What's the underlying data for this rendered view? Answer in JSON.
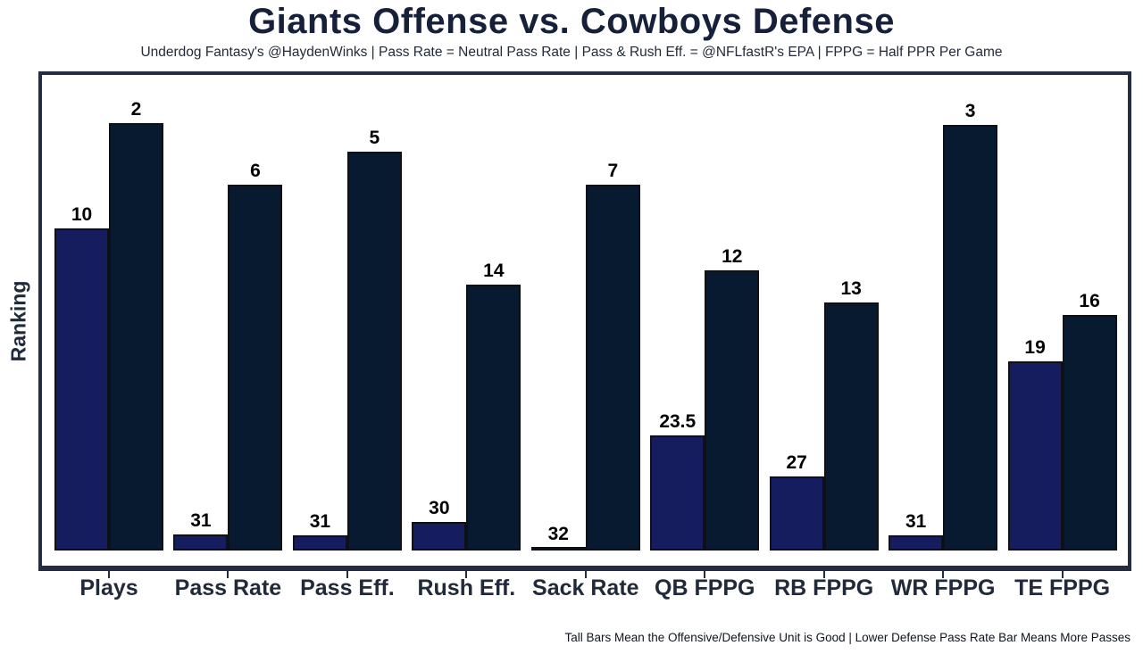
{
  "title": "Giants Offense vs. Cowboys Defense",
  "subtitle": "Underdog Fantasy's @HaydenWinks | Pass Rate = Neutral Pass Rate | Pass & Rush Eff. = @NFLfastR's EPA | FPPG = Half PPR Per Game",
  "footnote": "Tall Bars Mean the Offensive/Defensive Unit is Good | Lower Defense Pass Rate Bar Means More Passes",
  "colors": {
    "offense_bar": "#151d5e",
    "defense_bar": "#081a30",
    "bar_edge": "#0d1117",
    "axis": "#242e40",
    "title_text": "#17203a",
    "axis_label_text": "#202a3a",
    "value_label_text": "#000000"
  },
  "chart_data": {
    "type": "bar",
    "title": "Giants Offense vs. Cowboys Defense",
    "xlabel": "",
    "ylabel": "Ranking",
    "grid": false,
    "legend": "none",
    "categories": [
      "Plays",
      "Pass Rate",
      "Pass Eff.",
      "Rush Eff.",
      "Sack Rate",
      "QB FPPG",
      "RB FPPG",
      "WR FPPG",
      "TE FPPG"
    ],
    "series": [
      {
        "name": "Giants Offense",
        "role": "offense",
        "values": [
          10,
          31,
          31,
          30,
          32,
          23.5,
          27,
          31,
          19
        ],
        "height_frac": [
          0.677,
          0.034,
          0.032,
          0.06,
          0.005,
          0.242,
          0.156,
          0.032,
          0.398
        ]
      },
      {
        "name": "Cowboys Defense",
        "role": "defense",
        "values": [
          2,
          6,
          5,
          14,
          7,
          12,
          13,
          3,
          16
        ],
        "height_frac": [
          0.899,
          0.769,
          0.839,
          0.559,
          0.769,
          0.589,
          0.522,
          0.895,
          0.495
        ]
      }
    ],
    "value_labels": "rank shown above each bar",
    "note": "Bar height reflects unit quality (taller = better); numeric labels are league rankings, lower rank number = better"
  }
}
